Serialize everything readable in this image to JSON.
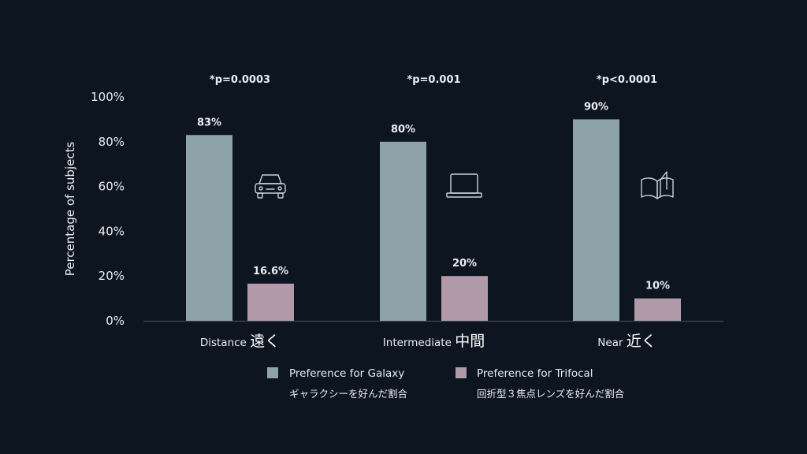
{
  "chart_data": {
    "type": "bar",
    "ylabel": "Percentage of subjects",
    "ylim": [
      0,
      100
    ],
    "yticks": [
      "0%",
      "20%",
      "40%",
      "60%",
      "80%",
      "100%"
    ],
    "grid": false,
    "legend_position": "bottom",
    "categories": [
      {
        "label": "Distance",
        "jp": "遠く",
        "pvalue": "*p=0.0003",
        "icon": "car-icon"
      },
      {
        "label": "Intermediate",
        "jp": "中間",
        "pvalue": "*p=0.001",
        "icon": "laptop-icon"
      },
      {
        "label": "Near",
        "jp": "近く",
        "pvalue": "*p<0.0001",
        "icon": "book-icon"
      }
    ],
    "series": [
      {
        "name": "Preference for Galaxy",
        "name_jp": "ギャラクシーを好んだ割合",
        "color": "#8ea2aa",
        "values": [
          83,
          80,
          90
        ],
        "labels": [
          "83%",
          "80%",
          "90%"
        ]
      },
      {
        "name": "Preference for Trifocal",
        "name_jp": "回折型３焦点レンズを好んだ割合",
        "color": "#b09aa8",
        "values": [
          16.6,
          20,
          10
        ],
        "labels": [
          "16.6%",
          "20%",
          "10%"
        ]
      }
    ]
  },
  "colors": {
    "background": "#0c1520",
    "axis": "#3a4654",
    "icon": "#c9d0d8"
  }
}
